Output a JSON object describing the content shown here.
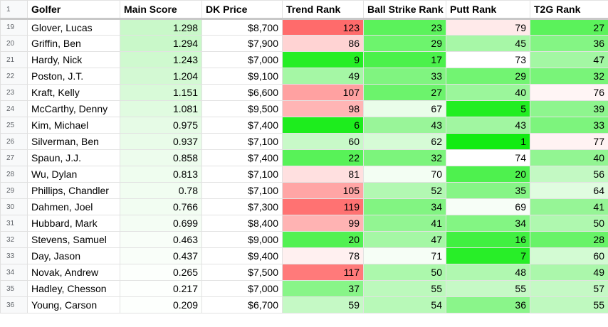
{
  "header": {
    "row_number": "1",
    "columns": [
      "Golfer",
      "Main Score",
      "DK Price",
      "Trend Rank",
      "Ball Strike Rank",
      "Putt Rank",
      "T2G Rank"
    ]
  },
  "rows": [
    {
      "n": "19",
      "cells": [
        "Glover, Lucas",
        "1.298",
        "$8,700",
        "123",
        "23",
        "79",
        "27"
      ],
      "bg": [
        "#ffffff",
        "#c9f8c9",
        "#ffffff",
        "#ff6b6b",
        "#5bf25b",
        "#ffeaea",
        "#5bf25b"
      ]
    },
    {
      "n": "20",
      "cells": [
        "Griffin, Ben",
        "1.294",
        "$7,900",
        "86",
        "29",
        "45",
        "36"
      ],
      "bg": [
        "#ffffff",
        "#c9f8c9",
        "#ffffff",
        "#ffd3d3",
        "#6df46d",
        "#a7f7a7",
        "#84f584"
      ]
    },
    {
      "n": "21",
      "cells": [
        "Hardy, Nick",
        "1.243",
        "$7,000",
        "9",
        "17",
        "73",
        "47"
      ],
      "bg": [
        "#ffffff",
        "#cff9cf",
        "#ffffff",
        "#25ee25",
        "#4bf14b",
        "#ffffff",
        "#a3f7a3"
      ]
    },
    {
      "n": "22",
      "cells": [
        "Poston, J.T.",
        "1.204",
        "$9,100",
        "49",
        "33",
        "29",
        "32"
      ],
      "bg": [
        "#ffffff",
        "#d3f9d3",
        "#ffffff",
        "#a5f7a5",
        "#80f480",
        "#72f472",
        "#79f479"
      ]
    },
    {
      "n": "23",
      "cells": [
        "Kraft, Kelly",
        "1.151",
        "$6,600",
        "107",
        "27",
        "40",
        "76"
      ],
      "bg": [
        "#ffffff",
        "#d8fad8",
        "#ffffff",
        "#ffa1a1",
        "#6cf36c",
        "#9bf69b",
        "#fff5f5"
      ]
    },
    {
      "n": "24",
      "cells": [
        "McCarthy, Denny",
        "1.081",
        "$9,500",
        "98",
        "67",
        "5",
        "39"
      ],
      "bg": [
        "#ffffff",
        "#e0fbe0",
        "#ffffff",
        "#ffb5b5",
        "#eafdea",
        "#22ee22",
        "#8ef58e"
      ]
    },
    {
      "n": "25",
      "cells": [
        "Kim, Michael",
        "0.975",
        "$7,400",
        "6",
        "43",
        "43",
        "33"
      ],
      "bg": [
        "#ffffff",
        "#e6fbe6",
        "#ffffff",
        "#1ded1d",
        "#99f599",
        "#a1f6a1",
        "#7df47d"
      ]
    },
    {
      "n": "26",
      "cells": [
        "Silverman, Ben",
        "0.937",
        "$7,100",
        "60",
        "62",
        "1",
        "77"
      ],
      "bg": [
        "#ffffff",
        "#e9fce9",
        "#ffffff",
        "#c8f9c8",
        "#d6fbd6",
        "#12ec12",
        "#fff3f3"
      ]
    },
    {
      "n": "27",
      "cells": [
        "Spaun, J.J.",
        "0.858",
        "$7,400",
        "22",
        "32",
        "74",
        "40"
      ],
      "bg": [
        "#ffffff",
        "#edfced",
        "#ffffff",
        "#58f258",
        "#7cf47c",
        "#ffffff",
        "#92f592"
      ]
    },
    {
      "n": "28",
      "cells": [
        "Wu, Dylan",
        "0.813",
        "$7,100",
        "81",
        "70",
        "20",
        "56"
      ],
      "bg": [
        "#ffffff",
        "#effdef",
        "#ffffff",
        "#ffe0e0",
        "#f3fef3",
        "#4ef14e",
        "#c3f9c3"
      ]
    },
    {
      "n": "29",
      "cells": [
        "Phillips, Chandler",
        "0.78",
        "$7,100",
        "105",
        "52",
        "35",
        "64"
      ],
      "bg": [
        "#ffffff",
        "#f1fdf1",
        "#ffffff",
        "#ffa5a5",
        "#b2f8b2",
        "#86f586",
        "#e0fce0"
      ]
    },
    {
      "n": "30",
      "cells": [
        "Dahmen, Joel",
        "0.766",
        "$7,300",
        "119",
        "34",
        "69",
        "41"
      ],
      "bg": [
        "#ffffff",
        "#f2fdf2",
        "#ffffff",
        "#ff7272",
        "#82f482",
        "#f7fef7",
        "#96f596"
      ]
    },
    {
      "n": "31",
      "cells": [
        "Hubbard, Mark",
        "0.699",
        "$8,400",
        "99",
        "41",
        "34",
        "50"
      ],
      "bg": [
        "#ffffff",
        "#f4fdf4",
        "#ffffff",
        "#ffb3b3",
        "#92f592",
        "#83f583",
        "#aff8af"
      ]
    },
    {
      "n": "32",
      "cells": [
        "Stevens, Samuel",
        "0.463",
        "$9,000",
        "20",
        "47",
        "16",
        "28"
      ],
      "bg": [
        "#ffffff",
        "#f8fef8",
        "#ffffff",
        "#52f152",
        "#a5f7a5",
        "#41f041",
        "#68f368"
      ]
    },
    {
      "n": "33",
      "cells": [
        "Day, Jason",
        "0.437",
        "$9,400",
        "78",
        "71",
        "7",
        "60"
      ],
      "bg": [
        "#ffffff",
        "#f9fef9",
        "#ffffff",
        "#fff0f0",
        "#f6fef6",
        "#28ee28",
        "#d3fbd3"
      ]
    },
    {
      "n": "34",
      "cells": [
        "Novak, Andrew",
        "0.265",
        "$7,500",
        "117",
        "50",
        "48",
        "49"
      ],
      "bg": [
        "#ffffff",
        "#fcfffc",
        "#ffffff",
        "#ff7a7a",
        "#acf8ac",
        "#b0f8b0",
        "#abf7ab"
      ]
    },
    {
      "n": "35",
      "cells": [
        "Hadley, Chesson",
        "0.217",
        "$7,000",
        "37",
        "55",
        "55",
        "57"
      ],
      "bg": [
        "#ffffff",
        "#fdfffd",
        "#ffffff",
        "#88f588",
        "#bcf9bc",
        "#c6f9c6",
        "#c5f9c5"
      ]
    },
    {
      "n": "36",
      "cells": [
        "Young, Carson",
        "0.209",
        "$6,700",
        "59",
        "54",
        "36",
        "55"
      ],
      "bg": [
        "#ffffff",
        "#fdfffd",
        "#ffffff",
        "#c5f9c5",
        "#b8f9b8",
        "#8af58a",
        "#bff9bf"
      ]
    }
  ]
}
